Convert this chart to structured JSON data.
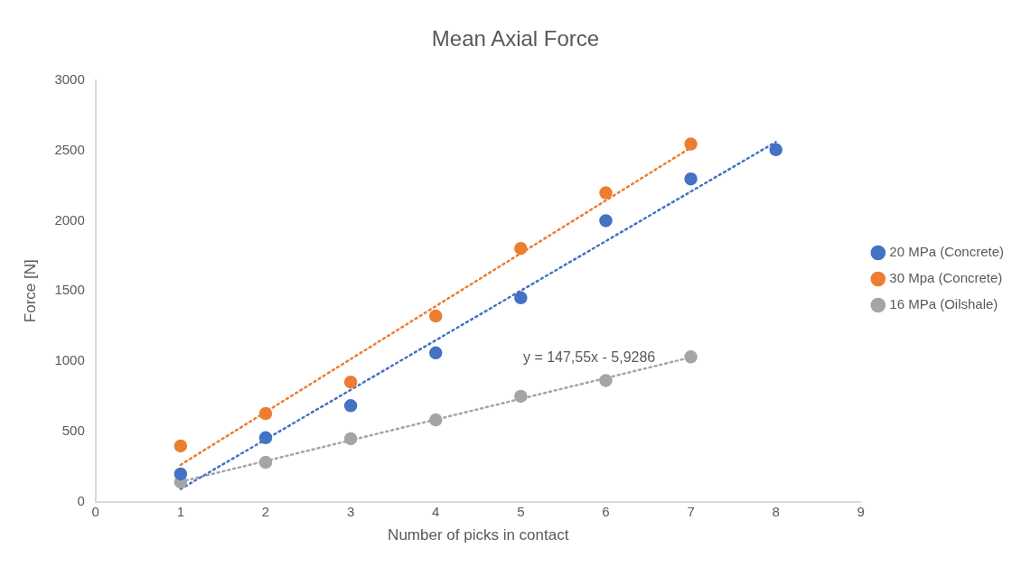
{
  "chart_data": {
    "type": "scatter",
    "title": "Mean Axial Force",
    "xlabel": "Number of picks in contact",
    "ylabel": "Force [N]",
    "x": [
      1,
      2,
      3,
      4,
      5,
      6,
      7,
      8
    ],
    "series": [
      {
        "name": "20 MPa (Concrete)",
        "color": "#4472c4",
        "values": [
          197,
          455,
          683,
          1059,
          1451,
          2000,
          2297,
          2505
        ]
      },
      {
        "name": "30 Mpa (Concrete)",
        "color": "#ed7d31",
        "x": [
          1,
          2,
          3,
          4,
          5,
          6,
          7
        ],
        "values": [
          396,
          627,
          851,
          1321,
          1802,
          2198,
          2545
        ]
      },
      {
        "name": "16 MPa (Oilshale)",
        "color": "#a5a5a5",
        "x": [
          1,
          2,
          3,
          4,
          5,
          6,
          7
        ],
        "values": [
          139,
          280,
          448,
          582,
          750,
          862,
          1030
        ]
      },
      {
        "type": "line",
        "color": "#4472c4",
        "x": [
          1,
          8
        ],
        "values": [
          90,
          2560
        ],
        "marker": "none",
        "line_style": "dotted"
      },
      {
        "type": "line",
        "color": "#ed7d31",
        "x": [
          1,
          7
        ],
        "values": [
          262,
          2520
        ],
        "marker": "none",
        "line_style": "dotted"
      },
      {
        "type": "line",
        "color": "#a5a5a5",
        "x": [
          1,
          7
        ],
        "values": [
          142,
          1027
        ],
        "marker": "none",
        "line_style": "dotted"
      }
    ],
    "annotations": [
      "y = 147,55x - 5,9286"
    ],
    "xlim": [
      0,
      9
    ],
    "xticks": [
      0,
      1,
      2,
      3,
      4,
      5,
      6,
      7,
      8,
      9
    ],
    "ylim": [
      0,
      3000
    ],
    "yticks": [
      0,
      500,
      1000,
      1500,
      2000,
      2500,
      3000
    ],
    "grid": false,
    "legend": "right",
    "marker": "circle"
  }
}
